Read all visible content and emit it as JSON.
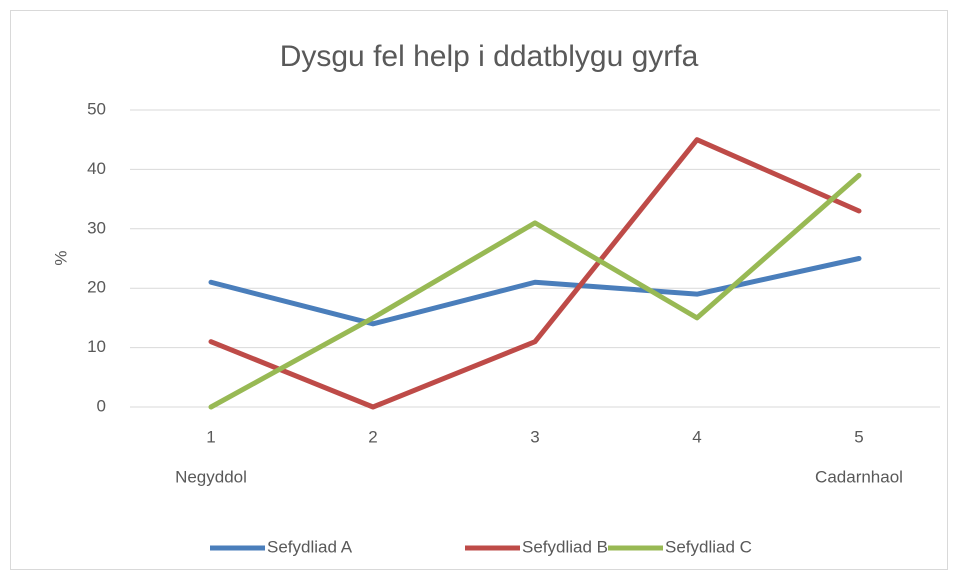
{
  "chart_data": {
    "type": "line",
    "title": "Dysgu fel help i ddatblygu gyrfa",
    "ylabel": "%",
    "categories": [
      "1",
      "2",
      "3",
      "4",
      "5"
    ],
    "series": [
      {
        "name": "Sefydliad A",
        "color": "#4a7ebb",
        "values": [
          21,
          14,
          21,
          19,
          25
        ]
      },
      {
        "name": "Sefydliad B",
        "color": "#be4b48",
        "values": [
          11,
          0,
          11,
          45,
          33
        ]
      },
      {
        "name": "Sefydliad C",
        "color": "#98b954",
        "values": [
          0,
          15,
          31,
          15,
          39
        ]
      }
    ],
    "annotations": [
      {
        "text": "Negyddol",
        "category": 0
      },
      {
        "text": "Cadarnhaol",
        "category": 4
      }
    ],
    "ylim": [
      0,
      50
    ],
    "yticks": [
      0,
      10,
      20,
      30,
      40,
      50
    ],
    "grid": true,
    "legend": "bottom"
  }
}
